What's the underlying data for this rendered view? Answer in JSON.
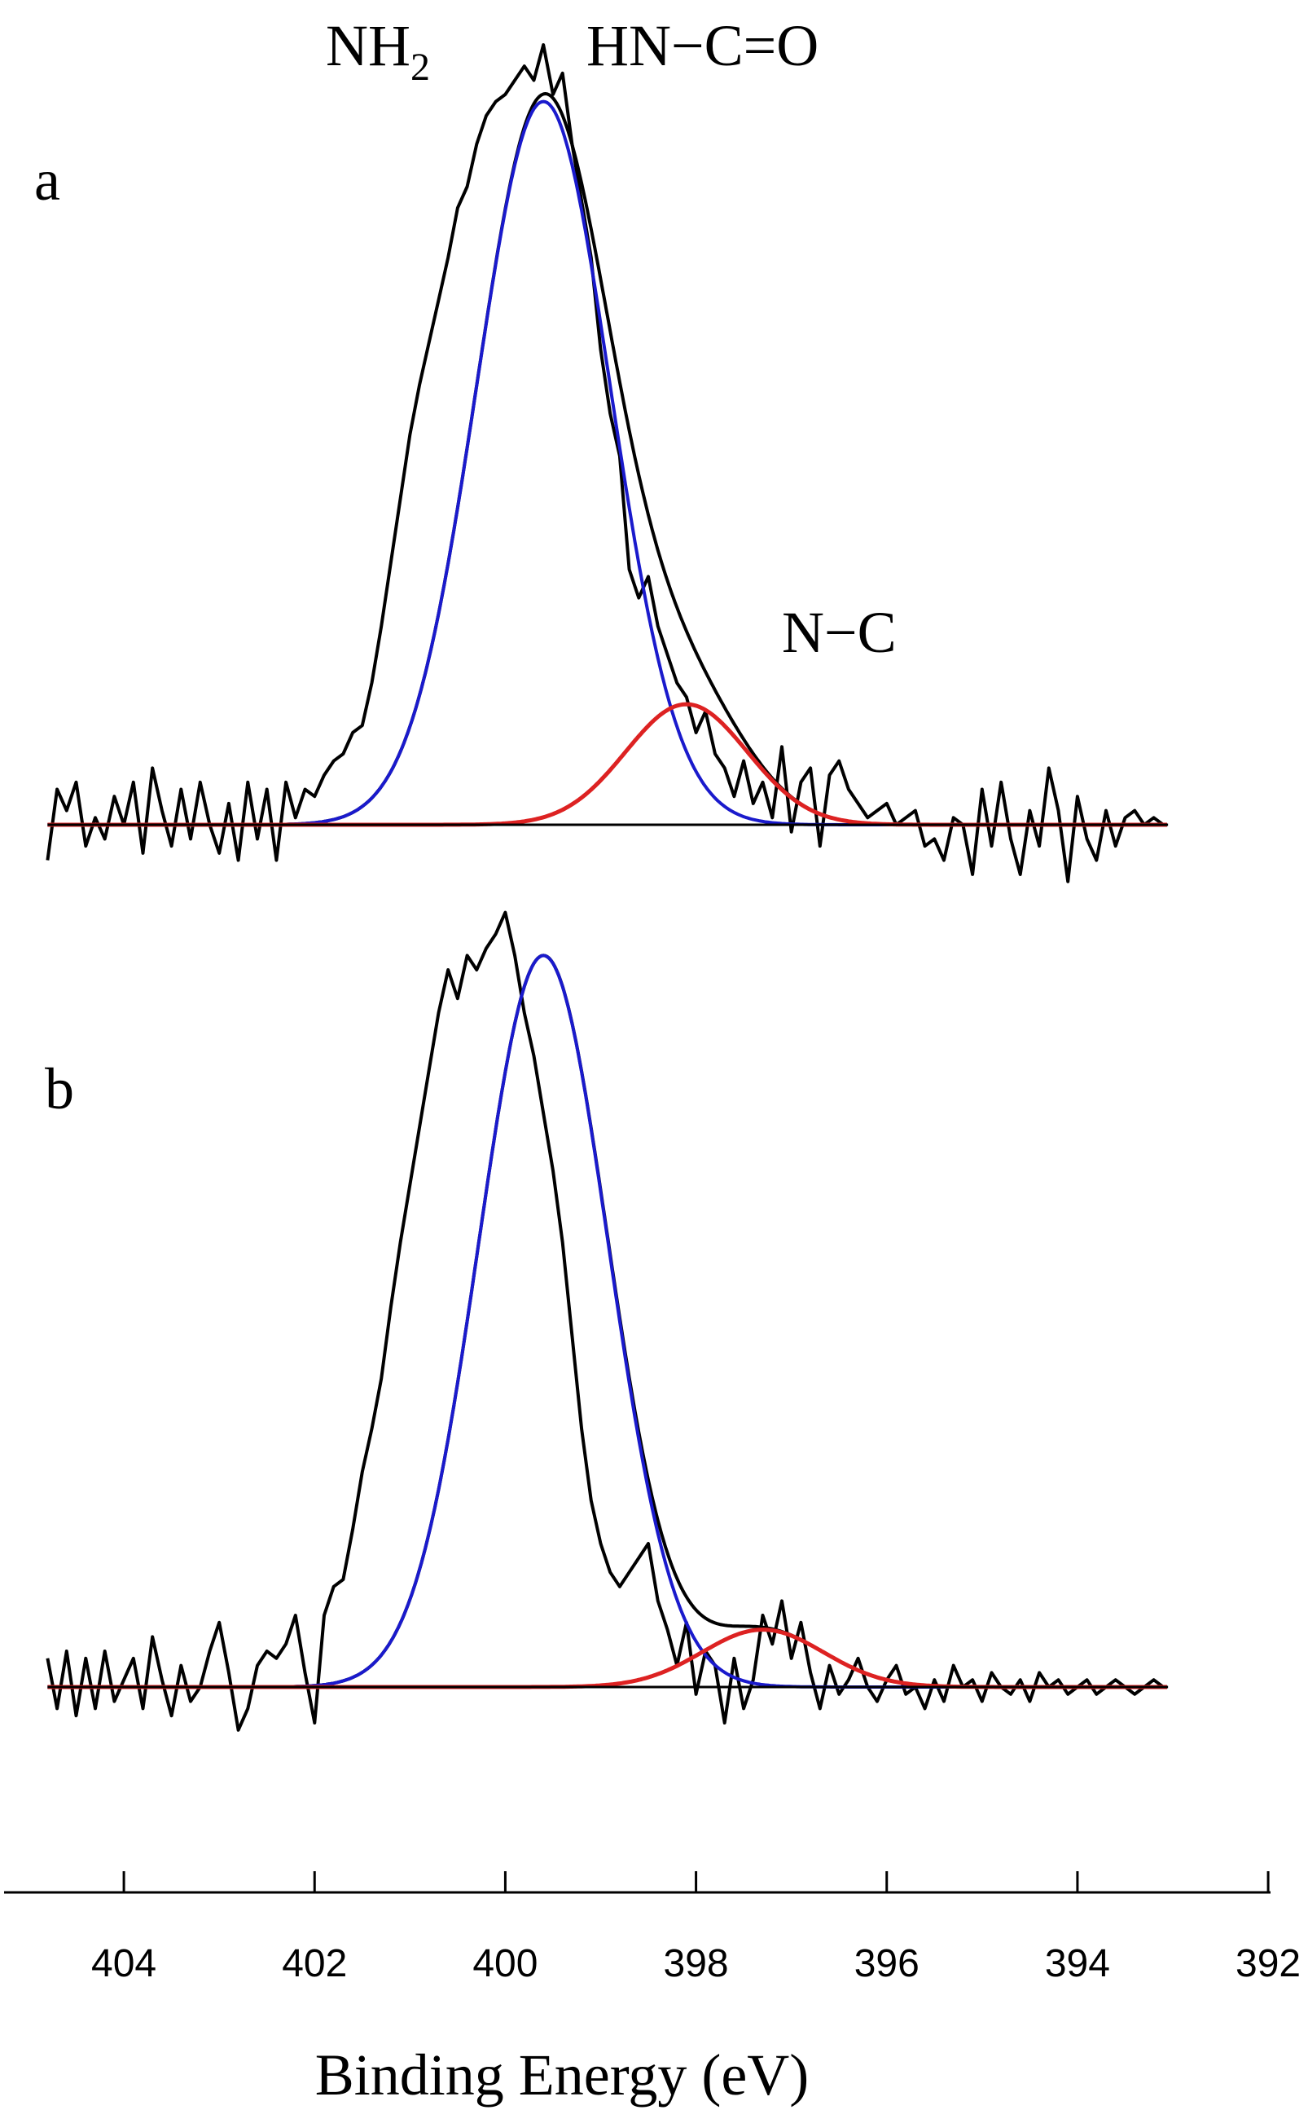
{
  "chart_data": {
    "type": "line",
    "title": "",
    "xlabel": "Binding Energy (eV)",
    "ylabel": "",
    "xlim": [
      405,
      393
    ],
    "x_reversed": true,
    "xticks": [
      404,
      402,
      400,
      398,
      396,
      394,
      392
    ],
    "grid": false,
    "legend": "none",
    "peak_labels": {
      "nh2": {
        "main": "NH",
        "sub": "2"
      },
      "amide": "HN−C=O",
      "nc": "N−C"
    },
    "panels": [
      {
        "label": "a",
        "series": [
          {
            "kind": "spectrum",
            "color": "#000000",
            "x": [
              404.8,
              404.7,
              404.6,
              404.5,
              404.4,
              404.3,
              404.2,
              404.1,
              404.0,
              403.9,
              403.8,
              403.7,
              403.6,
              403.5,
              403.4,
              403.3,
              403.2,
              403.1,
              403.0,
              402.9,
              402.8,
              402.7,
              402.6,
              402.5,
              402.4,
              402.3,
              402.2,
              402.1,
              402.0,
              401.9,
              401.8,
              401.7,
              401.6,
              401.5,
              401.4,
              401.3,
              401.2,
              401.1,
              401.0,
              400.9,
              400.8,
              400.7,
              400.6,
              400.5,
              400.4,
              400.3,
              400.2,
              400.1,
              400.0,
              399.9,
              399.8,
              399.7,
              399.6,
              399.5,
              399.4,
              399.3,
              399.2,
              399.1,
              399.0,
              398.9,
              398.8,
              398.7,
              398.6,
              398.5,
              398.4,
              398.3,
              398.2,
              398.1,
              398.0,
              397.9,
              397.8,
              397.7,
              397.6,
              397.5,
              397.4,
              397.3,
              397.2,
              397.1,
              397.0,
              396.9,
              396.8,
              396.7,
              396.6,
              396.5,
              396.4,
              396.3,
              396.2,
              396.1,
              396.0,
              395.9,
              395.8,
              395.7,
              395.6,
              395.5,
              395.4,
              395.3,
              395.2,
              395.1,
              395.0,
              394.9,
              394.8,
              394.7,
              394.6,
              394.5,
              394.4,
              394.3,
              394.2,
              394.1,
              394.0,
              393.9,
              393.8,
              393.7,
              393.6,
              393.5,
              393.4,
              393.3,
              393.2,
              393.1
            ],
            "y": [
              -0.05,
              0.05,
              0.02,
              0.06,
              -0.03,
              0.01,
              -0.02,
              0.04,
              0.0,
              0.06,
              -0.04,
              0.08,
              0.02,
              -0.03,
              0.05,
              -0.02,
              0.06,
              0.0,
              -0.04,
              0.03,
              -0.05,
              0.06,
              -0.02,
              0.05,
              -0.05,
              0.06,
              0.01,
              0.05,
              0.04,
              0.07,
              0.09,
              0.1,
              0.13,
              0.14,
              0.2,
              0.28,
              0.37,
              0.46,
              0.55,
              0.62,
              0.68,
              0.74,
              0.8,
              0.87,
              0.9,
              0.96,
              1.0,
              1.02,
              1.03,
              1.05,
              1.07,
              1.05,
              1.1,
              1.03,
              1.06,
              0.96,
              0.88,
              0.8,
              0.67,
              0.58,
              0.52,
              0.36,
              0.32,
              0.35,
              0.28,
              0.24,
              0.2,
              0.18,
              0.13,
              0.16,
              0.1,
              0.08,
              0.04,
              0.09,
              0.03,
              0.06,
              0.01,
              0.11,
              -0.01,
              0.06,
              0.08,
              -0.03,
              0.07,
              0.09,
              0.05,
              0.03,
              0.01,
              0.02,
              0.03,
              0.0,
              0.01,
              0.02,
              -0.03,
              -0.02,
              -0.05,
              0.01,
              0.0,
              -0.07,
              0.05,
              -0.03,
              0.06,
              -0.02,
              -0.07,
              0.02,
              -0.03,
              0.08,
              0.02,
              -0.08,
              0.04,
              -0.02,
              -0.05,
              0.02,
              -0.03,
              0.01,
              0.02,
              0.0,
              0.01,
              0.0
            ]
          },
          {
            "kind": "envelope",
            "color": "#000000",
            "peak_x": 399.6,
            "peak_y": 1.04
          },
          {
            "kind": "component",
            "color": "#1a1acc",
            "center": 399.6,
            "height": 1.02,
            "fwhm": 1.65
          },
          {
            "kind": "component",
            "color": "#dd2222",
            "center": 398.1,
            "height": 0.17,
            "fwhm": 1.5
          },
          {
            "kind": "baseline",
            "color": "#000000"
          }
        ]
      },
      {
        "label": "b",
        "series": [
          {
            "kind": "spectrum",
            "color": "#000000",
            "x": [
              404.8,
              404.7,
              404.6,
              404.5,
              404.4,
              404.3,
              404.2,
              404.1,
              404.0,
              403.9,
              403.8,
              403.7,
              403.6,
              403.5,
              403.4,
              403.3,
              403.2,
              403.1,
              403.0,
              402.9,
              402.8,
              402.7,
              402.6,
              402.5,
              402.4,
              402.3,
              402.2,
              402.1,
              402.0,
              401.9,
              401.8,
              401.7,
              401.6,
              401.5,
              401.4,
              401.3,
              401.2,
              401.1,
              401.0,
              400.9,
              400.8,
              400.7,
              400.6,
              400.5,
              400.4,
              400.3,
              400.2,
              400.1,
              400.0,
              399.9,
              399.8,
              399.7,
              399.6,
              399.5,
              399.4,
              399.3,
              399.2,
              399.1,
              399.0,
              398.9,
              398.8,
              398.7,
              398.6,
              398.5,
              398.4,
              398.3,
              398.2,
              398.1,
              398.0,
              397.9,
              397.8,
              397.7,
              397.6,
              397.5,
              397.4,
              397.3,
              397.2,
              397.1,
              397.0,
              396.9,
              396.8,
              396.7,
              396.6,
              396.5,
              396.4,
              396.3,
              396.2,
              396.1,
              396.0,
              395.9,
              395.8,
              395.7,
              395.6,
              395.5,
              395.4,
              395.3,
              395.2,
              395.1,
              395.0,
              394.9,
              394.8,
              394.7,
              394.6,
              394.5,
              394.4,
              394.3,
              394.2,
              394.1,
              394.0,
              393.9,
              393.8,
              393.7,
              393.6,
              393.5,
              393.4,
              393.3,
              393.2,
              393.1
            ],
            "y": [
              0.04,
              -0.03,
              0.05,
              -0.04,
              0.04,
              -0.03,
              0.05,
              -0.02,
              0.01,
              0.04,
              -0.03,
              0.07,
              0.01,
              -0.04,
              0.03,
              -0.02,
              0.0,
              0.05,
              0.09,
              0.02,
              -0.06,
              -0.03,
              0.03,
              0.05,
              0.04,
              0.06,
              0.1,
              0.02,
              -0.05,
              0.1,
              0.14,
              0.15,
              0.22,
              0.3,
              0.36,
              0.43,
              0.53,
              0.62,
              0.7,
              0.78,
              0.86,
              0.94,
              1.0,
              0.96,
              1.02,
              1.0,
              1.03,
              1.05,
              1.08,
              1.02,
              0.94,
              0.88,
              0.8,
              0.72,
              0.62,
              0.49,
              0.36,
              0.26,
              0.2,
              0.16,
              0.14,
              0.16,
              0.18,
              0.2,
              0.12,
              0.08,
              0.03,
              0.09,
              -0.01,
              0.05,
              0.03,
              -0.05,
              0.04,
              -0.03,
              0.01,
              0.1,
              0.06,
              0.12,
              0.04,
              0.09,
              0.02,
              -0.03,
              0.03,
              -0.01,
              0.01,
              0.04,
              0.0,
              -0.02,
              0.01,
              0.03,
              -0.01,
              0.0,
              -0.03,
              0.01,
              -0.02,
              0.03,
              0.0,
              0.01,
              -0.02,
              0.02,
              0.0,
              -0.01,
              0.01,
              -0.02,
              0.02,
              0.0,
              0.01,
              -0.01,
              0.0,
              0.01,
              -0.01,
              0.0,
              0.01,
              0.0,
              -0.01,
              0.0,
              0.01,
              0.0
            ]
          },
          {
            "kind": "envelope",
            "color": "#000000",
            "peak_x": 399.6,
            "peak_y": 1.02
          },
          {
            "kind": "component",
            "color": "#1a1acc",
            "center": 399.6,
            "height": 1.02,
            "fwhm": 1.6
          },
          {
            "kind": "component",
            "color": "#dd2222",
            "center": 397.3,
            "height": 0.08,
            "fwhm": 1.5
          },
          {
            "kind": "baseline",
            "color": "#000000"
          }
        ]
      }
    ]
  }
}
